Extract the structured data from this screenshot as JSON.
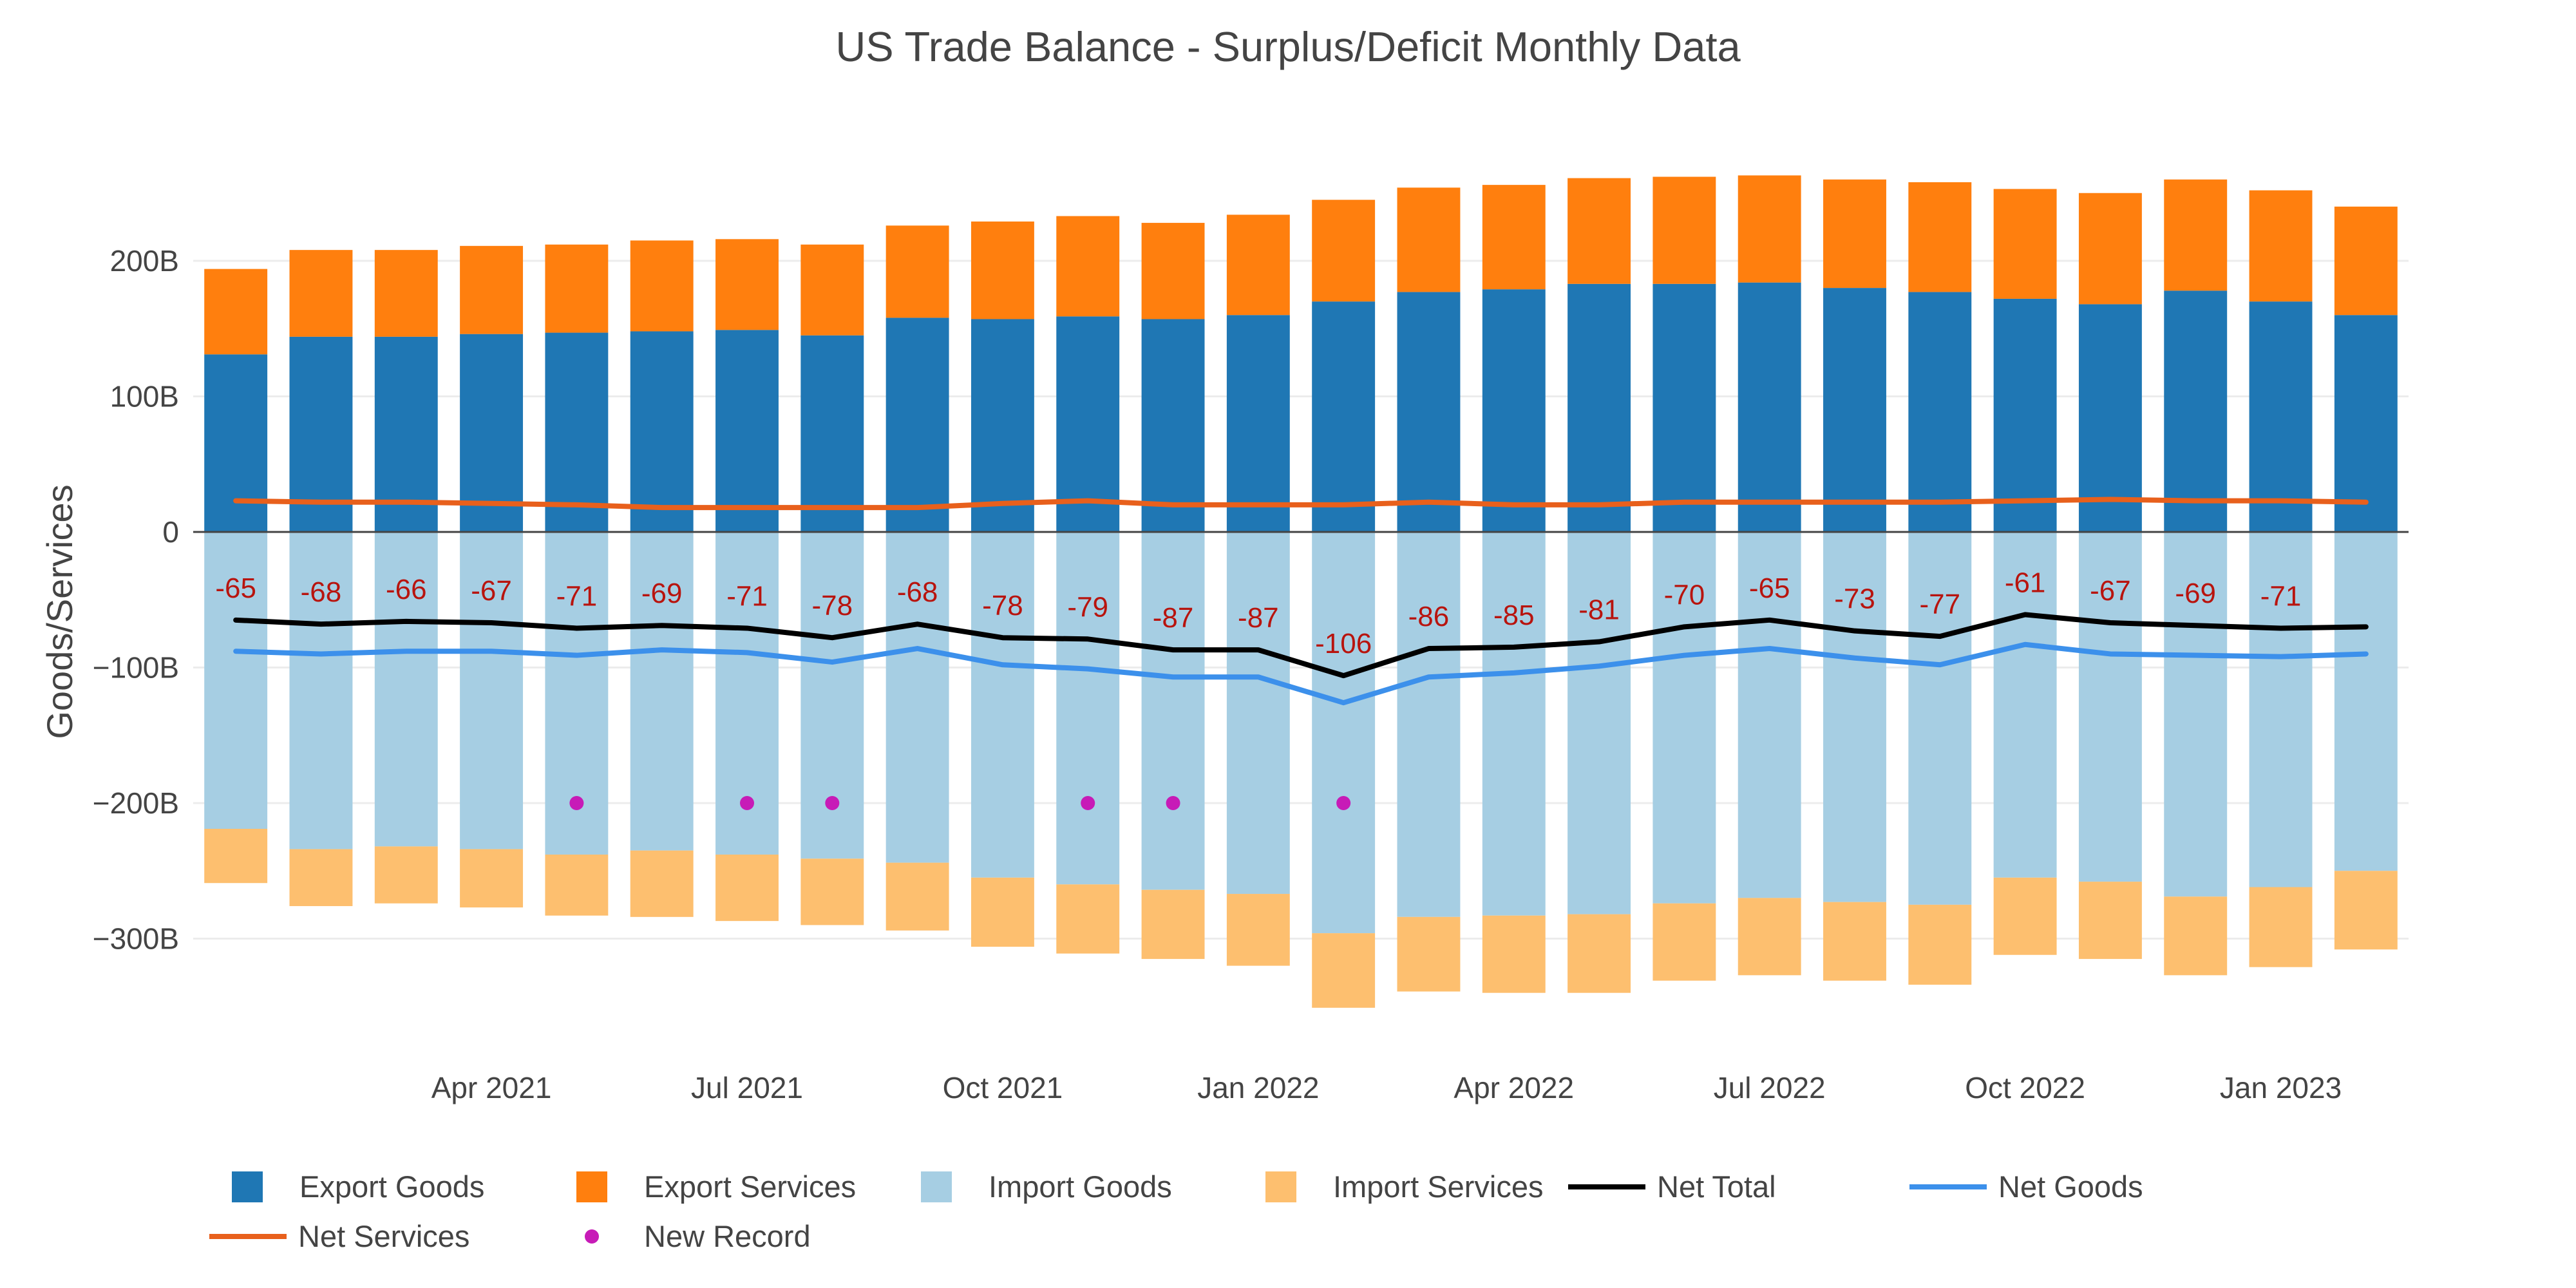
{
  "colors": {
    "export_goods": "#1f77b4",
    "export_services": "#ff7f0e",
    "import_goods": "#a6cee3",
    "import_services": "#fdbf6f",
    "net_total": "#000000",
    "net_goods": "#3c90eb",
    "net_services": "#e8601c",
    "new_record": "#c71bb7",
    "net_label": "#b8140e"
  },
  "chart_data": {
    "type": "bar",
    "title": "US Trade Balance - Surplus/Deficit Monthly Data",
    "ylabel": "Goods/Services",
    "xlabel": "",
    "barmode": "relative",
    "ylim": [
      -375,
      290
    ],
    "y_ticks": [
      {
        "value": 200,
        "label": "200B"
      },
      {
        "value": 100,
        "label": "100B"
      },
      {
        "value": 0,
        "label": "0"
      },
      {
        "value": -100,
        "label": "−100B"
      },
      {
        "value": -200,
        "label": "−200B"
      },
      {
        "value": -300,
        "label": "−300B"
      }
    ],
    "x": [
      "2021-01",
      "2021-02",
      "2021-03",
      "2021-04",
      "2021-05",
      "2021-06",
      "2021-07",
      "2021-08",
      "2021-09",
      "2021-10",
      "2021-11",
      "2021-12",
      "2022-01",
      "2022-02",
      "2022-03",
      "2022-04",
      "2022-05",
      "2022-06",
      "2022-07",
      "2022-08",
      "2022-09",
      "2022-10",
      "2022-11",
      "2022-12",
      "2023-01",
      "2023-02"
    ],
    "x_ticks": [
      {
        "at": "2021-04",
        "label": "Apr 2021"
      },
      {
        "at": "2021-07",
        "label": "Jul 2021"
      },
      {
        "at": "2021-10",
        "label": "Oct 2021"
      },
      {
        "at": "2022-01",
        "label": "Jan 2022"
      },
      {
        "at": "2022-04",
        "label": "Apr 2022"
      },
      {
        "at": "2022-07",
        "label": "Jul 2022"
      },
      {
        "at": "2022-10",
        "label": "Oct 2022"
      },
      {
        "at": "2023-01",
        "label": "Jan 2023"
      }
    ],
    "series": [
      {
        "name": "Export Goods",
        "kind": "bar",
        "color_key": "export_goods",
        "values": [
          131,
          144,
          144,
          146,
          147,
          148,
          149,
          145,
          158,
          157,
          159,
          157,
          160,
          170,
          177,
          179,
          183,
          183,
          184,
          180,
          177,
          172,
          168,
          178,
          170,
          160
        ]
      },
      {
        "name": "Export Services",
        "kind": "bar",
        "color_key": "export_services",
        "values": [
          63,
          64,
          64,
          65,
          65,
          67,
          67,
          67,
          68,
          72,
          74,
          71,
          74,
          75,
          77,
          77,
          78,
          79,
          79,
          80,
          81,
          81,
          82,
          82,
          82,
          80
        ]
      },
      {
        "name": "Import Goods",
        "kind": "bar",
        "color_key": "import_goods",
        "values": [
          -219,
          -234,
          -232,
          -234,
          -238,
          -235,
          -238,
          -241,
          -244,
          -255,
          -260,
          -264,
          -267,
          -296,
          -284,
          -283,
          -282,
          -274,
          -270,
          -273,
          -275,
          -255,
          -258,
          -269,
          -262,
          -250
        ]
      },
      {
        "name": "Import Services",
        "kind": "bar",
        "color_key": "import_services",
        "values": [
          -40,
          -42,
          -42,
          -43,
          -45,
          -49,
          -49,
          -49,
          -50,
          -51,
          -51,
          -51,
          -53,
          -55,
          -55,
          -57,
          -58,
          -57,
          -57,
          -58,
          -59,
          -57,
          -57,
          -58,
          -59,
          -58
        ]
      },
      {
        "name": "Net Total",
        "kind": "line",
        "color_key": "net_total",
        "values": [
          -65,
          -68,
          -66,
          -67,
          -71,
          -69,
          -71,
          -78,
          -68,
          -78,
          -79,
          -87,
          -87,
          -106,
          -86,
          -85,
          -81,
          -70,
          -65,
          -73,
          -77,
          -61,
          -67,
          -69,
          -71,
          -70
        ],
        "labels": [
          "-65",
          "-68",
          "-66",
          "-67",
          "-71",
          "-69",
          "-71",
          "-78",
          "-68",
          "-78",
          "-79",
          "-87",
          "-87",
          "-106",
          "-86",
          "-85",
          "-81",
          "-70",
          "-65",
          "-73",
          "-77",
          "-61",
          "-67",
          "-69",
          "-71",
          ""
        ]
      },
      {
        "name": "Net Goods",
        "kind": "line",
        "color_key": "net_goods",
        "values": [
          -88,
          -90,
          -88,
          -88,
          -91,
          -87,
          -89,
          -96,
          -86,
          -98,
          -101,
          -107,
          -107,
          -126,
          -107,
          -104,
          -99,
          -91,
          -86,
          -93,
          -98,
          -83,
          -90,
          -91,
          -92,
          -90
        ]
      },
      {
        "name": "Net Services",
        "kind": "line",
        "color_key": "net_services",
        "values": [
          23,
          22,
          22,
          21,
          20,
          18,
          18,
          18,
          18,
          21,
          23,
          20,
          20,
          20,
          22,
          20,
          20,
          22,
          22,
          22,
          22,
          23,
          24,
          23,
          23,
          22
        ]
      },
      {
        "name": "New Record",
        "kind": "scatter",
        "color_key": "new_record",
        "points": [
          {
            "x": "2021-05",
            "y": -200
          },
          {
            "x": "2021-07",
            "y": -200
          },
          {
            "x": "2021-08",
            "y": -200
          },
          {
            "x": "2021-11",
            "y": -200
          },
          {
            "x": "2021-12",
            "y": -200
          },
          {
            "x": "2022-02",
            "y": -200
          }
        ]
      }
    ],
    "legend": {
      "placement": "bottom-left",
      "items": [
        {
          "label": "Export Goods",
          "kind": "bar",
          "color_key": "export_goods"
        },
        {
          "label": "Export Services",
          "kind": "bar",
          "color_key": "export_services"
        },
        {
          "label": "Import Goods",
          "kind": "bar",
          "color_key": "import_goods"
        },
        {
          "label": "Import Services",
          "kind": "bar",
          "color_key": "import_services"
        },
        {
          "label": "Net Total",
          "kind": "line",
          "color_key": "net_total"
        },
        {
          "label": "Net Goods",
          "kind": "line",
          "color_key": "net_goods"
        },
        {
          "label": "Net Services",
          "kind": "line",
          "color_key": "net_services"
        },
        {
          "label": "New Record",
          "kind": "scatter",
          "color_key": "new_record"
        }
      ]
    },
    "grid": true
  }
}
